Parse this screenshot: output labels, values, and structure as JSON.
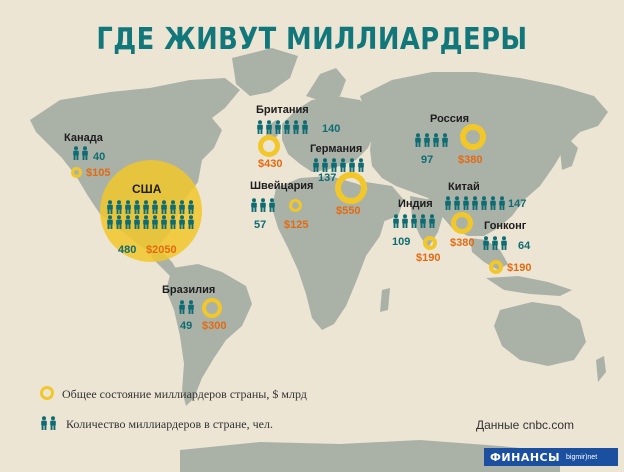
{
  "title": "ГДЕ ЖИВУТ МИЛЛИАРДЕРЫ",
  "countries": [
    {
      "id": "canada",
      "name": "Канада",
      "count": "40",
      "wealth": "$105",
      "billionaires": 40,
      "wealth_bn": 105
    },
    {
      "id": "usa",
      "name": "США",
      "count": "480",
      "wealth": "$2050",
      "billionaires": 480,
      "wealth_bn": 2050
    },
    {
      "id": "brazil",
      "name": "Бразилия",
      "count": "49",
      "wealth": "$300",
      "billionaires": 49,
      "wealth_bn": 300
    },
    {
      "id": "britain",
      "name": "Британия",
      "count": "140",
      "wealth": "$430",
      "billionaires": 140,
      "wealth_bn": 430
    },
    {
      "id": "switzerland",
      "name": "Швейцария",
      "count": "57",
      "wealth": "$125",
      "billionaires": 57,
      "wealth_bn": 125
    },
    {
      "id": "germany",
      "name": "Германия",
      "count": "137",
      "wealth": "$550",
      "billionaires": 137,
      "wealth_bn": 550
    },
    {
      "id": "russia",
      "name": "Россия",
      "count": "97",
      "wealth": "$380",
      "billionaires": 97,
      "wealth_bn": 380
    },
    {
      "id": "india",
      "name": "Индия",
      "count": "109",
      "wealth": "$190",
      "billionaires": 109,
      "wealth_bn": 190
    },
    {
      "id": "china",
      "name": "Китай",
      "count": "147",
      "wealth": "$380",
      "billionaires": 147,
      "wealth_bn": 380
    },
    {
      "id": "hongkong",
      "name": "Гонконг",
      "count": "64",
      "wealth": "$190",
      "billionaires": 64,
      "wealth_bn": 190
    }
  ],
  "legend": {
    "wealth": "Общее состояние миллиардеров страны, $ млрд",
    "count": "Количество миллиардеров в стране, чел."
  },
  "source": "Данные cnbc.com",
  "brand": {
    "main": "ФИНАНСЫ",
    "sub": "bigmir)net"
  },
  "colors": {
    "accent": "#12777a",
    "gold": "#f2c72a",
    "orange": "#e36a10",
    "land": "#aab3a9",
    "background": "#ede5d4"
  }
}
